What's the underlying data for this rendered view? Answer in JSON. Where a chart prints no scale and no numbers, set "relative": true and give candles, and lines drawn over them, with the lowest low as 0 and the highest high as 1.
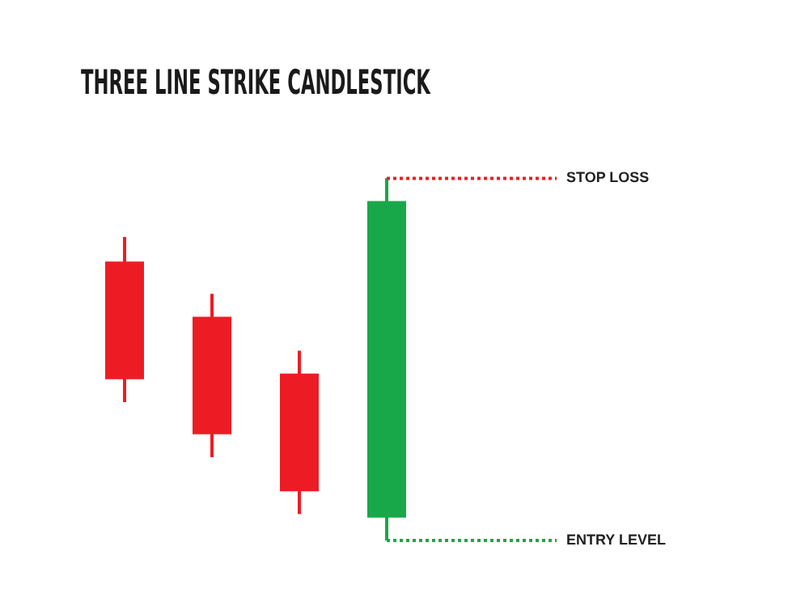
{
  "chart_data": {
    "type": "candlestick",
    "title": "THREE LINE STRIKE CANDLESTICK",
    "relative": true,
    "categories": [
      null,
      null,
      null,
      null
    ],
    "ohlc": [
      [
        0.77,
        0.838,
        0.382,
        0.445
      ],
      [
        0.618,
        0.681,
        0.23,
        0.293
      ],
      [
        0.461,
        0.524,
        0.073,
        0.136
      ],
      [
        0.063,
        1,
        0,
        0.937
      ]
    ],
    "colors": [
      "#ed1c24",
      "#ed1c24",
      "#ed1c24",
      "#18a84a"
    ],
    "ref_lines": [
      {
        "axis": "y",
        "value": 1,
        "label": "STOP LOSS",
        "color": "#ed1c24",
        "line_style": "dotted"
      },
      {
        "axis": "y",
        "value": 0,
        "label": "ENTRY LEVEL",
        "color": "#18a84a",
        "line_style": "dotted"
      }
    ],
    "legend": false
  }
}
